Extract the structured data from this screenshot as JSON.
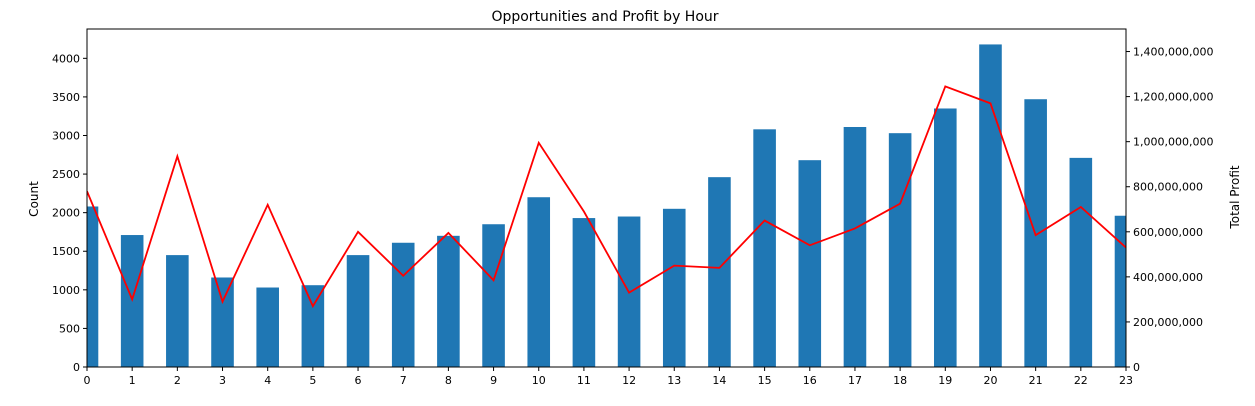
{
  "chart_data": {
    "type": "bar",
    "title": "Opportunities and Profit by Hour",
    "ylabel": "Count",
    "y2label": "Total Profit",
    "xlabel": "",
    "categories": [
      "0",
      "1",
      "2",
      "3",
      "4",
      "5",
      "6",
      "7",
      "8",
      "9",
      "10",
      "11",
      "12",
      "13",
      "14",
      "15",
      "16",
      "17",
      "18",
      "19",
      "20",
      "21",
      "22",
      "23"
    ],
    "ylim": [
      0,
      4380
    ],
    "y2lim": [
      0,
      1500000000
    ],
    "yticks": [
      "0",
      "500",
      "1000",
      "1500",
      "2000",
      "2500",
      "3000",
      "3500",
      "4000"
    ],
    "y2ticks": [
      "0",
      "200,000,000",
      "400,000,000",
      "600,000,000",
      "800,000,000",
      "1,000,000,000",
      "1,200,000,000",
      "1,400,000,000"
    ],
    "grid": false,
    "series": [
      {
        "kind": "bar",
        "axis": "left",
        "color": "#1f77b4",
        "values": [
          2080,
          1710,
          1450,
          1160,
          1030,
          1060,
          1450,
          1610,
          1700,
          1850,
          2200,
          1930,
          1950,
          2050,
          2460,
          3080,
          2680,
          3110,
          3030,
          3350,
          4180,
          3470,
          2710,
          1960
        ]
      },
      {
        "kind": "line",
        "axis": "right",
        "color": "#ff0000",
        "values": [
          780000000,
          300000000,
          935000000,
          290000000,
          720000000,
          270000000,
          600000000,
          405000000,
          595000000,
          385000000,
          995000000,
          690000000,
          330000000,
          450000000,
          440000000,
          650000000,
          540000000,
          615000000,
          725000000,
          1245000000,
          1170000000,
          585000000,
          710000000,
          530000000
        ]
      }
    ]
  }
}
